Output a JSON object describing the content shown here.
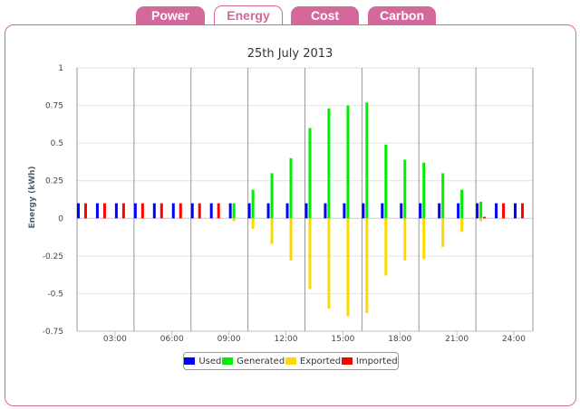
{
  "tabs": [
    {
      "label": "Power"
    },
    {
      "label": "Energy"
    },
    {
      "label": "Cost"
    },
    {
      "label": "Carbon"
    }
  ],
  "colors": {
    "used": "#0000ff",
    "generated": "#00ee00",
    "exported": "#ffd700",
    "imported": "#ff0000",
    "accent": "#d4689a"
  },
  "chart_data": {
    "type": "bar",
    "title": "25th July 2013",
    "ylabel": "Energy (kWh)",
    "xlabel": "",
    "ylim": [
      -0.75,
      1
    ],
    "yticks": [
      1,
      0.75,
      0.5,
      0.25,
      0,
      -0.25,
      -0.5,
      -0.75
    ],
    "ytick_labels": [
      "1",
      "0.75",
      "0.5",
      "0.25",
      "0",
      "-0.25",
      "-0.5",
      "-0.75"
    ],
    "xtick_labels": [
      "03:00",
      "06:00",
      "09:00",
      "12:00",
      "15:00",
      "18:00",
      "21:00",
      "24:00"
    ],
    "xlim": [
      0,
      24
    ],
    "categories": [
      "01:00",
      "02:00",
      "03:00",
      "04:00",
      "05:00",
      "06:00",
      "07:00",
      "08:00",
      "09:00",
      "10:00",
      "11:00",
      "12:00",
      "13:00",
      "14:00",
      "15:00",
      "16:00",
      "17:00",
      "18:00",
      "19:00",
      "20:00",
      "21:00",
      "22:00",
      "23:00",
      "24:00"
    ],
    "series": [
      {
        "name": "Used",
        "key": "used",
        "values": [
          0.1,
          0.1,
          0.1,
          0.1,
          0.1,
          0.1,
          0.1,
          0.1,
          0.1,
          0.1,
          0.1,
          0.1,
          0.1,
          0.1,
          0.1,
          0.1,
          0.1,
          0.1,
          0.1,
          0.1,
          0.1,
          0.1,
          0.1,
          0.1
        ]
      },
      {
        "name": "Generated",
        "key": "generated",
        "values": [
          0,
          0,
          0,
          0,
          0,
          0,
          0,
          0,
          0.1,
          0.19,
          0.3,
          0.4,
          0.6,
          0.73,
          0.75,
          0.77,
          0.49,
          0.39,
          0.37,
          0.3,
          0.19,
          0.11,
          0,
          0
        ]
      },
      {
        "name": "Exported",
        "key": "exported",
        "values": [
          0,
          0,
          0,
          0,
          0,
          0,
          0,
          0,
          -0.02,
          -0.07,
          -0.17,
          -0.28,
          -0.47,
          -0.6,
          -0.65,
          -0.63,
          -0.38,
          -0.28,
          -0.27,
          -0.19,
          -0.09,
          -0.02,
          0,
          0
        ]
      },
      {
        "name": "Imported",
        "key": "imported",
        "values": [
          0.1,
          0.1,
          0.1,
          0.1,
          0.1,
          0.1,
          0.1,
          0.1,
          0,
          0,
          0,
          0,
          0,
          0,
          0,
          0,
          0,
          0,
          0,
          0,
          0,
          0.01,
          0.1,
          0.1
        ]
      }
    ],
    "legend": [
      "Used",
      "Generated",
      "Exported",
      "Imported"
    ],
    "legend_position": "bottom-center",
    "grid": true
  }
}
